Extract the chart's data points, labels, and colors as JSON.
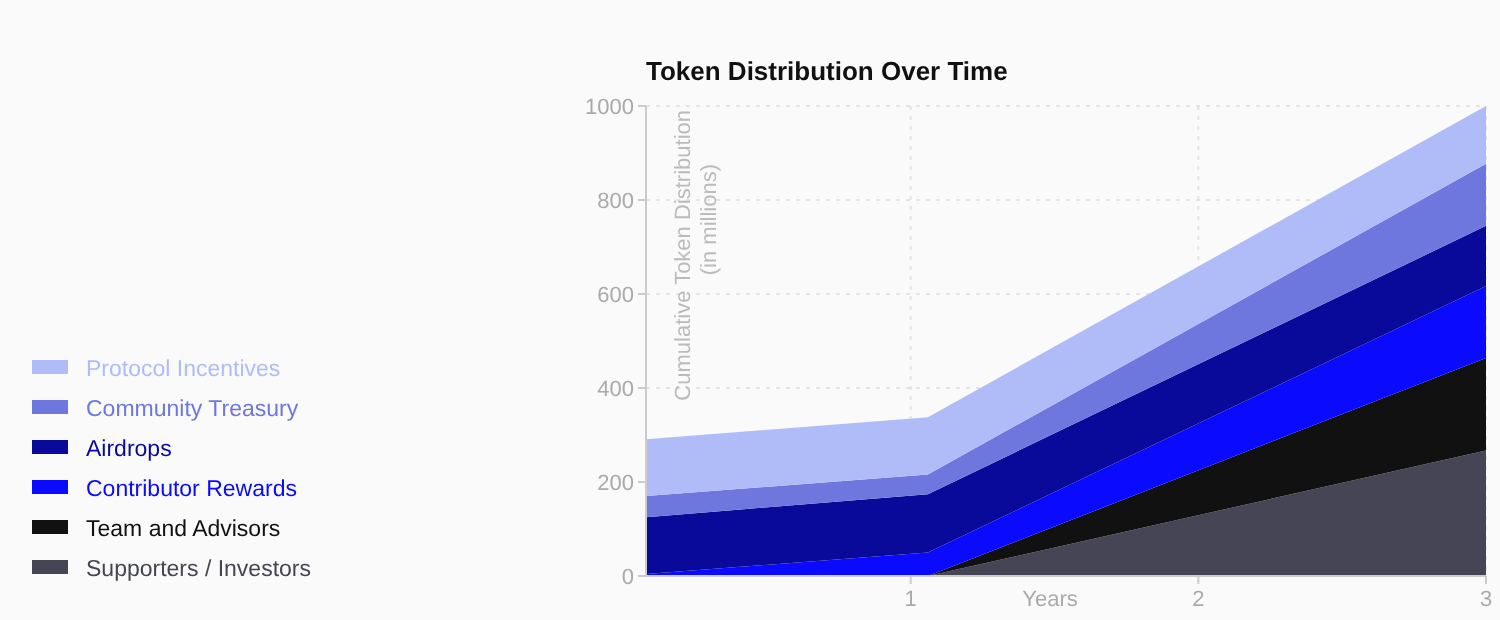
{
  "chart_data": {
    "type": "area",
    "stacked": true,
    "title": "Token Distribution Over Time",
    "xlabel": "Years",
    "ylabel": "Cumulative Token Distribution\n(in millions)",
    "x": [
      0.08,
      1.06,
      3
    ],
    "xlim": [
      0.08,
      3
    ],
    "xticks": [
      1,
      2,
      3
    ],
    "ylim": [
      0,
      1000
    ],
    "yticks": [
      0,
      200,
      400,
      600,
      800,
      1000
    ],
    "grid": true,
    "legend": "left",
    "series": [
      {
        "name": "Supporters / Investors",
        "color": "#454555",
        "values": [
          0,
          0,
          267
        ]
      },
      {
        "name": "Team and Advisors",
        "color": "#111111",
        "values": [
          0,
          0,
          197
        ]
      },
      {
        "name": "Contributor Rewards",
        "color": "#0a0aff",
        "values": [
          4,
          50,
          153
        ]
      },
      {
        "name": "Airdrops",
        "color": "#0a0a9a",
        "values": [
          121,
          124,
          128
        ]
      },
      {
        "name": "Community Treasury",
        "color": "#6e77dd",
        "values": [
          45,
          42,
          132
        ]
      },
      {
        "name": "Protocol Incentives",
        "color": "#b0bcf8",
        "values": [
          121,
          122,
          123
        ]
      }
    ]
  }
}
